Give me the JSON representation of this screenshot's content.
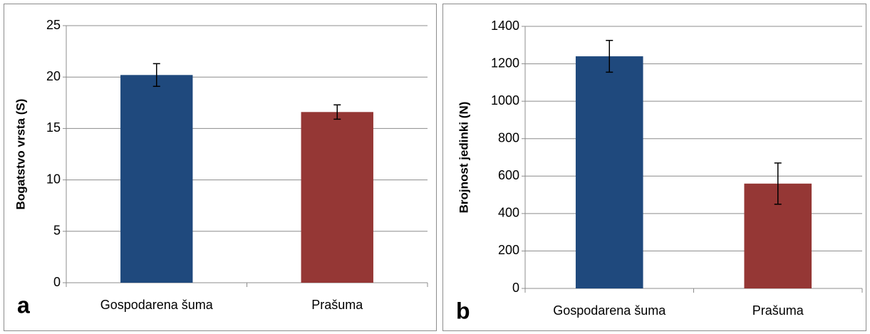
{
  "chart_data": [
    {
      "type": "bar",
      "panel_label": "a",
      "y_label": "Bogatstvo vrsta (S)",
      "categories": [
        "Gospodarena šuma",
        "Prašuma"
      ],
      "values": [
        20.2,
        16.6
      ],
      "errors": [
        1.1,
        0.7
      ],
      "colors": [
        "#1f497d",
        "#953735"
      ],
      "ylim": [
        0,
        25
      ],
      "yticks": [
        0,
        5,
        10,
        15,
        20,
        25
      ],
      "grid": true
    },
    {
      "type": "bar",
      "panel_label": "b",
      "y_label": "Brojnost jedinki (N)",
      "categories": [
        "Gospodarena šuma",
        "Prašuma"
      ],
      "values": [
        1240,
        560
      ],
      "errors": [
        85,
        110
      ],
      "colors": [
        "#1f497d",
        "#953735"
      ],
      "ylim": [
        0,
        1400
      ],
      "yticks": [
        0,
        200,
        400,
        600,
        800,
        1000,
        1200,
        1400
      ],
      "grid": true
    }
  ]
}
